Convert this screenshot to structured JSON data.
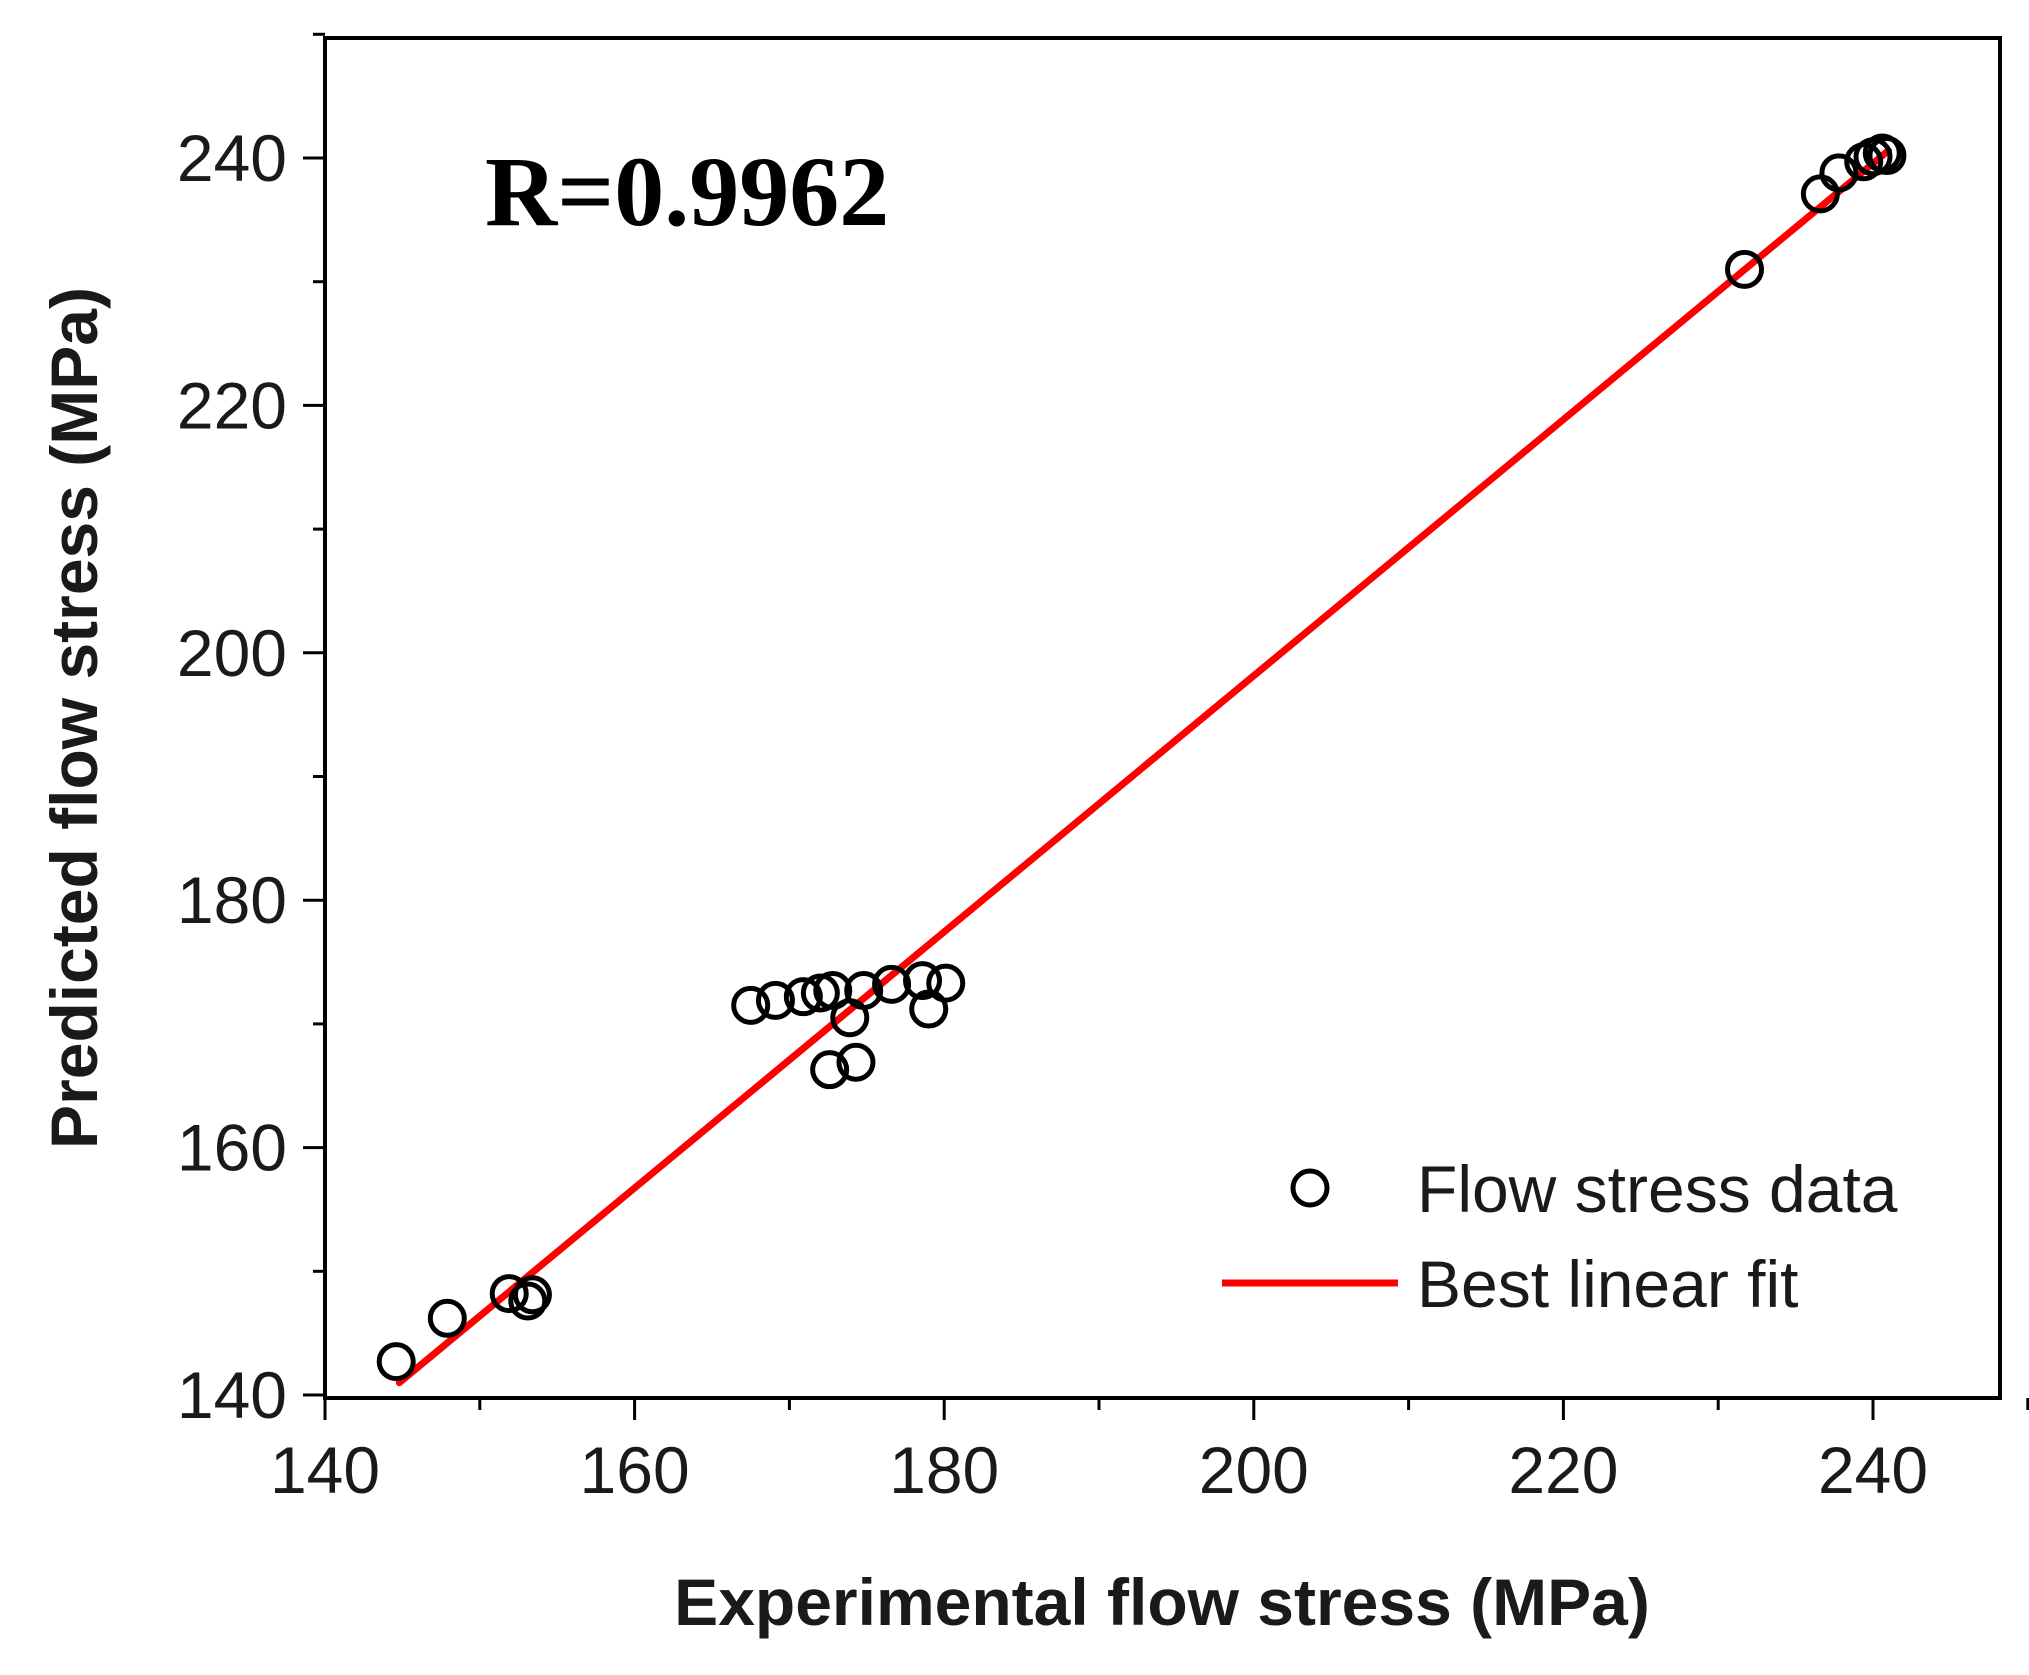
{
  "chart_data": {
    "type": "scatter",
    "title": "",
    "xlabel": "Experimental flow stress (MPa)",
    "ylabel": "Predicted flow stress (MPa)",
    "xlim": [
      140,
      250
    ],
    "ylim": [
      140,
      250
    ],
    "xticks": [
      140,
      160,
      180,
      200,
      220,
      240
    ],
    "yticks": [
      140,
      160,
      180,
      200,
      220,
      240
    ],
    "grid": false,
    "legend_position": "bottom-right",
    "annotation": "R=0.9962",
    "series": [
      {
        "name": "Flow stress data",
        "kind": "scatter",
        "marker": "open-circle",
        "color": "#000000",
        "points": [
          [
            144.6,
            142.7
          ],
          [
            147.9,
            146.2
          ],
          [
            151.9,
            148.2
          ],
          [
            153.1,
            147.6
          ],
          [
            153.4,
            148.1
          ],
          [
            167.5,
            171.5
          ],
          [
            169.1,
            171.9
          ],
          [
            170.9,
            172.2
          ],
          [
            172.0,
            172.5
          ],
          [
            172.8,
            172.7
          ],
          [
            172.6,
            166.3
          ],
          [
            173.9,
            170.5
          ],
          [
            174.3,
            166.9
          ],
          [
            174.8,
            172.7
          ],
          [
            176.6,
            173.2
          ],
          [
            178.6,
            173.5
          ],
          [
            179.0,
            171.2
          ],
          [
            180.1,
            173.3
          ],
          [
            231.7,
            231.0
          ],
          [
            236.6,
            237.1
          ],
          [
            237.8,
            238.8
          ],
          [
            239.4,
            239.7
          ],
          [
            240.0,
            240.1
          ],
          [
            240.6,
            240.4
          ],
          [
            240.9,
            240.2
          ]
        ]
      },
      {
        "name": "Best linear fit",
        "kind": "line",
        "color": "#ff0000",
        "points": [
          [
            144.8,
            141.0
          ],
          [
            241.0,
            240.6
          ]
        ]
      }
    ]
  }
}
